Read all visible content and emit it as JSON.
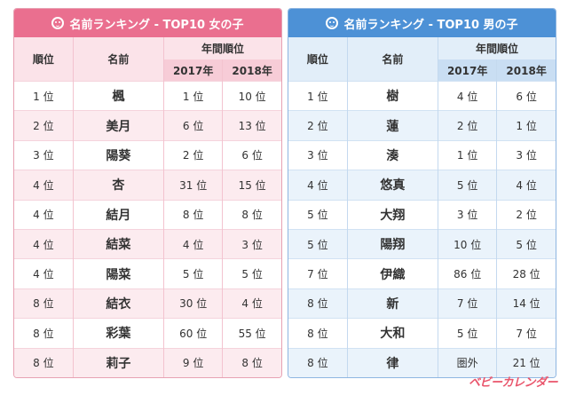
{
  "girls": {
    "title": "名前ランキング - TOP10 女の子",
    "headers": {
      "rank": "順位",
      "name": "名前",
      "annual": "年間順位",
      "y2017": "2017年",
      "y2018": "2018年"
    },
    "rows": [
      {
        "rank": "1 位",
        "name": "楓",
        "y2017": "1 位",
        "y2018": "10 位"
      },
      {
        "rank": "2 位",
        "name": "美月",
        "y2017": "6 位",
        "y2018": "13 位"
      },
      {
        "rank": "3 位",
        "name": "陽葵",
        "y2017": "2 位",
        "y2018": "6 位"
      },
      {
        "rank": "4 位",
        "name": "杏",
        "y2017": "31 位",
        "y2018": "15 位"
      },
      {
        "rank": "4 位",
        "name": "結月",
        "y2017": "8 位",
        "y2018": "8 位"
      },
      {
        "rank": "4 位",
        "name": "結菜",
        "y2017": "4 位",
        "y2018": "3 位"
      },
      {
        "rank": "4 位",
        "name": "陽菜",
        "y2017": "5 位",
        "y2018": "5 位"
      },
      {
        "rank": "8 位",
        "name": "結衣",
        "y2017": "30 位",
        "y2018": "4 位"
      },
      {
        "rank": "8 位",
        "name": "彩葉",
        "y2017": "60 位",
        "y2018": "55 位"
      },
      {
        "rank": "8 位",
        "name": "莉子",
        "y2017": "9 位",
        "y2018": "8 位"
      }
    ]
  },
  "boys": {
    "title": "名前ランキング - TOP10 男の子",
    "headers": {
      "rank": "順位",
      "name": "名前",
      "annual": "年間順位",
      "y2017": "2017年",
      "y2018": "2018年"
    },
    "rows": [
      {
        "rank": "1 位",
        "name": "樹",
        "y2017": "4 位",
        "y2018": "6 位"
      },
      {
        "rank": "2 位",
        "name": "蓮",
        "y2017": "2 位",
        "y2018": "1 位"
      },
      {
        "rank": "3 位",
        "name": "湊",
        "y2017": "1 位",
        "y2018": "3 位"
      },
      {
        "rank": "4 位",
        "name": "悠真",
        "y2017": "5 位",
        "y2018": "4 位"
      },
      {
        "rank": "5 位",
        "name": "大翔",
        "y2017": "3 位",
        "y2018": "2 位"
      },
      {
        "rank": "5 位",
        "name": "陽翔",
        "y2017": "10 位",
        "y2018": "5 位"
      },
      {
        "rank": "7 位",
        "name": "伊織",
        "y2017": "86 位",
        "y2018": "28 位"
      },
      {
        "rank": "8 位",
        "name": "新",
        "y2017": "7 位",
        "y2018": "14 位"
      },
      {
        "rank": "8 位",
        "name": "大和",
        "y2017": "5 位",
        "y2018": "7 位"
      },
      {
        "rank": "8 位",
        "name": "律",
        "y2017": "圏外",
        "y2018": "21 位"
      }
    ]
  },
  "logo": "ベビーカレンダー",
  "colors": {
    "girl_accent": "#ea6f8f",
    "boy_accent": "#4d91d6",
    "logo": "#e9546b"
  }
}
